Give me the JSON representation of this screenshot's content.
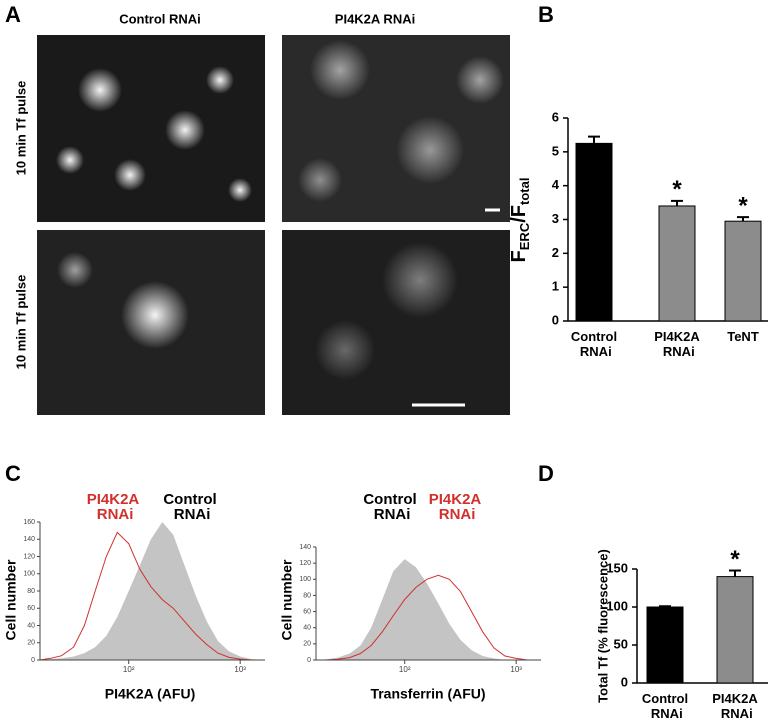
{
  "panels": {
    "A": "A",
    "B": "B",
    "C": "C",
    "D": "D"
  },
  "images": {
    "col_labels": [
      "Control RNAi",
      "PI4K2A RNAi"
    ],
    "row_labels": [
      "10 min Tf pulse",
      "10 min Tf pulse"
    ]
  },
  "chart_data": [
    {
      "type": "bar",
      "categories": [
        "Control RNAi",
        "PI4K2A RNAi",
        "TeNT"
      ],
      "values": [
        5.25,
        3.4,
        2.95
      ],
      "errors": [
        0.2,
        0.15,
        0.12
      ],
      "colors": [
        "#000000",
        "#8c8c8c",
        "#8c8c8c"
      ],
      "significance": [
        null,
        "*",
        "*"
      ],
      "ylabel": {
        "main": "F",
        "sub": "ERC",
        "main2": "/F",
        "sub2": "total"
      },
      "ylim": [
        0,
        6
      ],
      "yticks": [
        0,
        1,
        2,
        3,
        4,
        5,
        6
      ]
    },
    {
      "type": "line",
      "xscale": "log",
      "ylabel": "Cell number",
      "xlabel": "PI4K2A (AFU)",
      "x": [
        16,
        20,
        25,
        32,
        40,
        50,
        63,
        79,
        100,
        126,
        158,
        200,
        251,
        316,
        398,
        501,
        631,
        794,
        1000,
        1259,
        1585
      ],
      "series": [
        {
          "name": "PI4K2A RNAi",
          "color": "#d0312d",
          "fill": false,
          "values": [
            0,
            2,
            5,
            15,
            40,
            80,
            120,
            148,
            135,
            105,
            85,
            70,
            60,
            45,
            30,
            18,
            8,
            3,
            1,
            0,
            0
          ]
        },
        {
          "name": "Control RNAi",
          "color": "#c4c4c4",
          "fill": true,
          "values": [
            0,
            1,
            2,
            4,
            8,
            15,
            28,
            50,
            80,
            110,
            140,
            160,
            145,
            110,
            75,
            45,
            22,
            10,
            4,
            1,
            0
          ]
        }
      ],
      "xlim": [
        16,
        1670
      ],
      "xticks": [
        {
          "value": 100,
          "label": "10²"
        },
        {
          "value": 1000,
          "label": "10³"
        }
      ],
      "ylim": [
        0,
        160
      ],
      "yticks": [
        0,
        20,
        40,
        60,
        80,
        100,
        120,
        140,
        160
      ]
    },
    {
      "type": "line",
      "xscale": "log",
      "ylabel": "Cell number",
      "xlabel": "Transferrin (AFU)",
      "x": [
        16,
        20,
        25,
        32,
        40,
        50,
        63,
        79,
        100,
        126,
        158,
        200,
        251,
        316,
        398,
        501,
        631,
        794,
        1000,
        1259,
        1585
      ],
      "series": [
        {
          "name": "Control RNAi",
          "color": "#c4c4c4",
          "fill": true,
          "values": [
            0,
            1,
            3,
            8,
            18,
            40,
            75,
            110,
            125,
            115,
            95,
            70,
            45,
            25,
            12,
            5,
            2,
            0,
            0,
            0,
            0
          ]
        },
        {
          "name": "PI4K2A RNAi",
          "color": "#d0312d",
          "fill": false,
          "values": [
            0,
            0,
            1,
            3,
            8,
            18,
            35,
            55,
            75,
            90,
            100,
            105,
            100,
            85,
            60,
            35,
            15,
            5,
            2,
            0,
            0
          ]
        }
      ],
      "xlim": [
        16,
        1670
      ],
      "xticks": [
        {
          "value": 100,
          "label": "10²"
        },
        {
          "value": 1000,
          "label": "10³"
        }
      ],
      "ylim": [
        0,
        140
      ],
      "yticks": [
        0,
        20,
        40,
        60,
        80,
        100,
        120,
        140
      ]
    },
    {
      "type": "bar",
      "categories": [
        "Control RNAi",
        "PI4K2A RNAi"
      ],
      "values": [
        100,
        140
      ],
      "errors": [
        1,
        8
      ],
      "colors": [
        "#000000",
        "#8c8c8c"
      ],
      "significance": [
        null,
        "*"
      ],
      "ylabel": "Total Tf (% fluorescence)",
      "ylim": [
        0,
        150
      ],
      "yticks": [
        0,
        50,
        100,
        150
      ]
    }
  ]
}
